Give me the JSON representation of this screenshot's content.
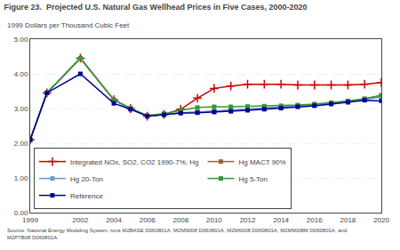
{
  "chart_data": {
    "type": "line",
    "title": "Figure 23.  Projected U.S. Natural Gas Wellhead Prices in Five Cases, 2000-2020",
    "subtitle": "1999 Dollars per Thousand Cubic Feet",
    "source": "Source: National Energy Modeling System, runs M2BASE D060801A, M2M9008 D060801A, M2M6008 D060801A, M2M9008M D060801A, and\nM2P7B08 D060801A.",
    "x": [
      1999,
      2000,
      2002,
      2004,
      2005,
      2006,
      2007,
      2008,
      2009,
      2010,
      2011,
      2012,
      2013,
      2014,
      2015,
      2016,
      2017,
      2018,
      2019,
      2020
    ],
    "xlim": [
      1999,
      2020
    ],
    "xticks": [
      1999,
      2002,
      2004,
      2006,
      2008,
      2010,
      2012,
      2014,
      2016,
      2018,
      2020
    ],
    "ylim": [
      0.0,
      5.0
    ],
    "yticks": [
      {
        "value": 0.0,
        "label": "0.00"
      },
      {
        "value": 1.0,
        "label": "1.00"
      },
      {
        "value": 2.0,
        "label": "2.00"
      },
      {
        "value": 3.0,
        "label": "3.00"
      },
      {
        "value": 4.0,
        "label": "4.00"
      },
      {
        "value": 5.0,
        "label": "5.00"
      }
    ],
    "grid": "y",
    "legend": "lower left",
    "series": [
      {
        "name": "Integrated NOx, SO2, CO2 1990-7%, Hg",
        "color": "#cc0000",
        "marker": "cross",
        "values": [
          2.1,
          3.45,
          4.45,
          3.25,
          3.0,
          2.78,
          2.83,
          2.98,
          3.3,
          3.58,
          3.65,
          3.7,
          3.7,
          3.7,
          3.68,
          3.68,
          3.68,
          3.68,
          3.7,
          3.75
        ]
      },
      {
        "name": "Hg MACT 90%",
        "color": "#996633",
        "marker": "square",
        "values": [
          2.1,
          3.45,
          4.45,
          3.25,
          3.0,
          2.78,
          2.83,
          2.88,
          2.9,
          2.92,
          2.95,
          2.98,
          3.0,
          3.03,
          3.07,
          3.1,
          3.15,
          3.2,
          3.28,
          3.38
        ]
      },
      {
        "name": "Hg 20-Ton",
        "color": "#6699cc",
        "marker": "square",
        "values": [
          2.1,
          3.45,
          4.45,
          3.25,
          3.0,
          2.78,
          2.83,
          2.87,
          2.89,
          2.92,
          2.95,
          2.98,
          3.01,
          3.04,
          3.08,
          3.11,
          3.16,
          3.21,
          3.27,
          3.33
        ]
      },
      {
        "name": "Hg 5-Ton",
        "color": "#339933",
        "marker": "square",
        "values": [
          2.1,
          3.45,
          4.45,
          3.25,
          3.0,
          2.8,
          2.85,
          2.95,
          3.03,
          3.05,
          3.05,
          3.06,
          3.07,
          3.08,
          3.1,
          3.13,
          3.17,
          3.22,
          3.28,
          3.38
        ]
      },
      {
        "name": "Reference",
        "color": "#000099",
        "marker": "square",
        "values": [
          2.1,
          3.45,
          4.0,
          3.15,
          2.98,
          2.78,
          2.82,
          2.87,
          2.88,
          2.9,
          2.92,
          2.95,
          2.98,
          3.01,
          3.05,
          3.08,
          3.13,
          3.18,
          3.24,
          3.22
        ]
      }
    ]
  }
}
